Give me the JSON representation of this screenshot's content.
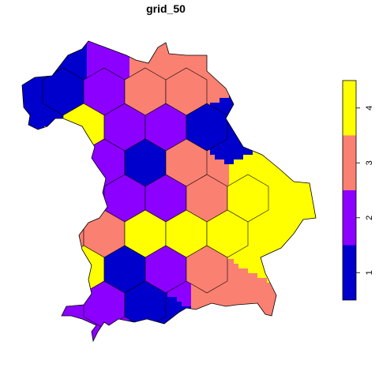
{
  "title": "grid_50",
  "legend": {
    "ticks": [
      "1",
      "2",
      "3",
      "4"
    ],
    "colors": [
      "#0000CD",
      "#8B00FF",
      "#FA8072",
      "#FFFF00"
    ],
    "range": [
      0.5,
      4.5
    ]
  },
  "map": {
    "region_name": "",
    "value_meaning": "",
    "hexagons": [
      {
        "row": 0,
        "col": 1,
        "value": 1
      },
      {
        "row": 0,
        "col": 2,
        "value": 2
      },
      {
        "row": 0,
        "col": 3,
        "value": 3
      },
      {
        "row": 0,
        "col": 4,
        "value": 3
      },
      {
        "row": 1,
        "col": 1,
        "value": 4
      },
      {
        "row": 1,
        "col": 2,
        "value": 2
      },
      {
        "row": 1,
        "col": 3,
        "value": 2
      },
      {
        "row": 1,
        "col": 4,
        "value": 1
      },
      {
        "row": 2,
        "col": 1,
        "value": 2
      },
      {
        "row": 2,
        "col": 2,
        "value": 2
      },
      {
        "row": 2,
        "col": 3,
        "value": 1
      },
      {
        "row": 2,
        "col": 4,
        "value": 3
      },
      {
        "row": 3,
        "col": 2,
        "value": 2
      },
      {
        "row": 3,
        "col": 3,
        "value": 2
      },
      {
        "row": 3,
        "col": 4,
        "value": 3
      },
      {
        "row": 3,
        "col": 5,
        "value": 4
      },
      {
        "row": 4,
        "col": 1,
        "value": 3
      },
      {
        "row": 4,
        "col": 2,
        "value": 3
      },
      {
        "row": 4,
        "col": 3,
        "value": 4
      },
      {
        "row": 4,
        "col": 4,
        "value": 4
      },
      {
        "row": 4,
        "col": 5,
        "value": 4
      },
      {
        "row": 5,
        "col": 1,
        "value": 4
      },
      {
        "row": 5,
        "col": 2,
        "value": 1
      },
      {
        "row": 5,
        "col": 3,
        "value": 2
      },
      {
        "row": 5,
        "col": 4,
        "value": 3
      },
      {
        "row": 6,
        "col": 2,
        "value": 2
      },
      {
        "row": 6,
        "col": 3,
        "value": 1
      }
    ]
  }
}
